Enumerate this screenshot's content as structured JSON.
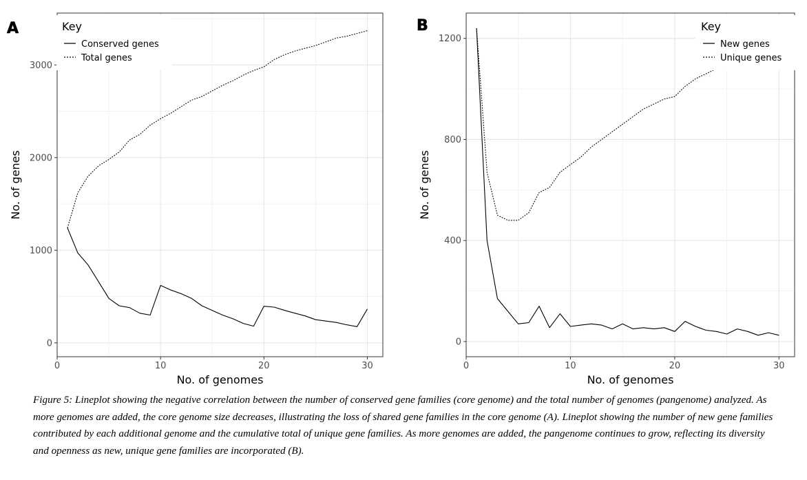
{
  "caption": "Figure 5: Lineplot showing the negative correlation between the number of conserved gene families (core genome) and the total number of genomes (pangenome) analyzed. As more genomes are added, the core genome size decreases, illustrating the loss of shared gene families in the core genome (A). Lineplot showing the number of new gene families contributed by each additional genome and the cumulative total of unique gene families. As more genomes are added, the pangenome continues to grow, reflecting its diversity and openness as new, unique gene families are incorporated (B).",
  "chart_data": [
    {
      "panel": "A",
      "type": "line",
      "xlabel": "No. of genomes",
      "ylabel": "No. of genes",
      "xlim": [
        0,
        31.5
      ],
      "ylim": [
        -150,
        3560
      ],
      "xticks": [
        0,
        10,
        20,
        30
      ],
      "yticks": [
        0,
        1000,
        2000,
        3000
      ],
      "grid": true,
      "legend": {
        "title": "Key",
        "placement": "top-left"
      },
      "x": [
        1,
        2,
        3,
        4,
        5,
        6,
        7,
        8,
        9,
        10,
        11,
        12,
        13,
        14,
        15,
        16,
        17,
        18,
        19,
        20,
        21,
        22,
        23,
        24,
        25,
        26,
        27,
        28,
        29,
        30
      ],
      "series": [
        {
          "name": "Conserved genes",
          "style": "solid",
          "values": [
            1240,
            970,
            840,
            660,
            480,
            400,
            380,
            320,
            300,
            620,
            570,
            530,
            480,
            400,
            350,
            300,
            260,
            210,
            180,
            395,
            385,
            350,
            320,
            290,
            250,
            235,
            220,
            195,
            175,
            365
          ]
        },
        {
          "name": "Total genes",
          "style": "dotted",
          "values": [
            1240,
            1620,
            1800,
            1910,
            1980,
            2060,
            2190,
            2250,
            2350,
            2420,
            2480,
            2550,
            2620,
            2660,
            2720,
            2780,
            2830,
            2890,
            2940,
            2980,
            3060,
            3110,
            3150,
            3180,
            3210,
            3250,
            3290,
            3310,
            3340,
            3370
          ]
        }
      ]
    },
    {
      "panel": "B",
      "type": "line",
      "xlabel": "No. of genomes",
      "ylabel": "No. of genes",
      "xlim": [
        0,
        31.5
      ],
      "ylim": [
        -60,
        1300
      ],
      "xticks": [
        0,
        10,
        20,
        30
      ],
      "yticks": [
        0,
        400,
        800,
        1200
      ],
      "grid": true,
      "legend": {
        "title": "Key",
        "placement": "top-right"
      },
      "x": [
        1,
        2,
        3,
        4,
        5,
        6,
        7,
        8,
        9,
        10,
        11,
        12,
        13,
        14,
        15,
        16,
        17,
        18,
        19,
        20,
        21,
        22,
        23,
        24,
        25,
        26,
        27,
        28,
        29,
        30
      ],
      "series": [
        {
          "name": "New genes",
          "style": "solid",
          "values": [
            1240,
            400,
            170,
            120,
            70,
            75,
            140,
            55,
            110,
            60,
            65,
            70,
            65,
            50,
            70,
            50,
            55,
            50,
            55,
            40,
            80,
            60,
            45,
            40,
            30,
            50,
            40,
            25,
            35,
            25
          ]
        },
        {
          "name": "Unique genes",
          "style": "dotted",
          "values": [
            1240,
            670,
            500,
            480,
            480,
            510,
            590,
            610,
            670,
            700,
            730,
            770,
            800,
            830,
            860,
            890,
            920,
            940,
            960,
            970,
            1010,
            1040,
            1060,
            1080,
            1100,
            1130,
            1160,
            1180,
            1200,
            1230
          ]
        }
      ]
    }
  ]
}
